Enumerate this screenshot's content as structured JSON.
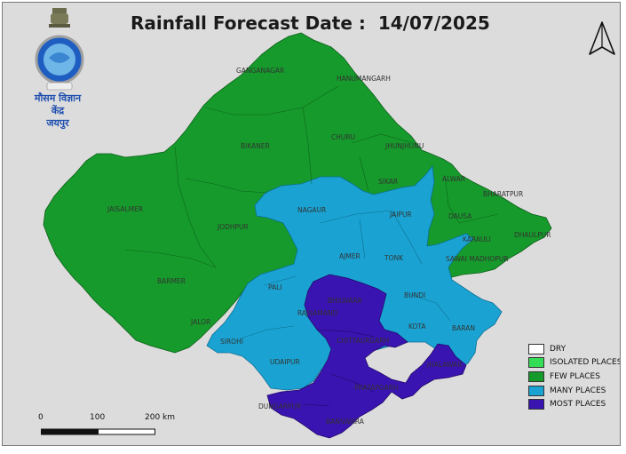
{
  "title": {
    "prefix": "Rainfall Forecast Date :",
    "date": "14/07/2025"
  },
  "logo": {
    "icon": "imd-emblem",
    "text_line1": "मौसम विज्ञान",
    "text_line2": "केंद्र",
    "text_line3": "जयपुर"
  },
  "north_arrow": {
    "icon": "north-arrow-icon"
  },
  "legend": {
    "items": [
      {
        "label": "DRY",
        "color": "#ffffff"
      },
      {
        "label": "ISOLATED PLACES",
        "color": "#33dd55"
      },
      {
        "label": "FEW PLACES",
        "color": "#169a2b"
      },
      {
        "label": "MANY PLACES",
        "color": "#1aa3d2"
      },
      {
        "label": "MOST PLACES",
        "color": "#3a14b0"
      }
    ]
  },
  "scale_bar": {
    "labels": [
      "0",
      "100",
      "200 km"
    ]
  },
  "districts": [
    {
      "name": "GANGANAGAR",
      "category": "FEW PLACES"
    },
    {
      "name": "HANUMANGARH",
      "category": "FEW PLACES"
    },
    {
      "name": "BIKANER",
      "category": "FEW PLACES"
    },
    {
      "name": "CHURU",
      "category": "FEW PLACES"
    },
    {
      "name": "JHUNJHUNU",
      "category": "FEW PLACES"
    },
    {
      "name": "SIKAR",
      "category": "FEW PLACES"
    },
    {
      "name": "ALWAR",
      "category": "FEW PLACES"
    },
    {
      "name": "BHARATPUR",
      "category": "FEW PLACES"
    },
    {
      "name": "DAUSA",
      "category": "FEW PLACES"
    },
    {
      "name": "KARAULI",
      "category": "FEW PLACES"
    },
    {
      "name": "DHAULPUR",
      "category": "FEW PLACES"
    },
    {
      "name": "SAWAI MADHOPUR",
      "category": "FEW PLACES"
    },
    {
      "name": "JAISALMER",
      "category": "FEW PLACES"
    },
    {
      "name": "JODHPUR",
      "category": "FEW PLACES"
    },
    {
      "name": "BARMER",
      "category": "FEW PLACES"
    },
    {
      "name": "JALOR",
      "category": "FEW PLACES"
    },
    {
      "name": "NAGAUR",
      "category": "MANY PLACES"
    },
    {
      "name": "JAIPUR",
      "category": "MANY PLACES"
    },
    {
      "name": "AJMER",
      "category": "MANY PLACES"
    },
    {
      "name": "TONK",
      "category": "MANY PLACES"
    },
    {
      "name": "PALI",
      "category": "MANY PLACES"
    },
    {
      "name": "BUNDI",
      "category": "MANY PLACES"
    },
    {
      "name": "KOTA",
      "category": "MANY PLACES"
    },
    {
      "name": "BARAN",
      "category": "MANY PLACES"
    },
    {
      "name": "SIROHI",
      "category": "MANY PLACES"
    },
    {
      "name": "UDAIPUR",
      "category": "MANY PLACES"
    },
    {
      "name": "BHILWARA",
      "category": "MOST PLACES"
    },
    {
      "name": "RAJSAMAND",
      "category": "MOST PLACES"
    },
    {
      "name": "CHITTAURGARH",
      "category": "MOST PLACES"
    },
    {
      "name": "JHALAWAR",
      "category": "MOST PLACES"
    },
    {
      "name": "PRATAPGARH",
      "category": "MOST PLACES"
    },
    {
      "name": "DUNGARPUR",
      "category": "MOST PLACES"
    },
    {
      "name": "BANSWARA",
      "category": "MOST PLACES"
    }
  ]
}
